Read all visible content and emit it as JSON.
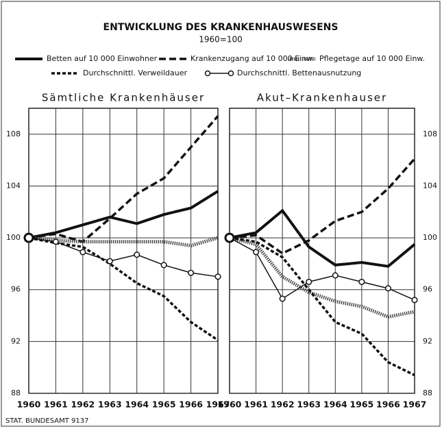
{
  "header": {
    "title": "ENTWICKLUNG DES KRANKENHAUSWESENS",
    "subtitle": "1960=100"
  },
  "source": "STAT. BUNDESAMT 9137",
  "chart_data": [
    {
      "type": "line",
      "title": "Sämtliche Krankenhäuser",
      "categories": [
        "1960",
        "1961",
        "1962",
        "1963",
        "1964",
        "1965",
        "1966",
        "1967"
      ],
      "ylim": [
        88,
        110
      ],
      "yticks": [
        88,
        92,
        96,
        100,
        104,
        108
      ],
      "grid": true,
      "yaxis": "left",
      "series": [
        {
          "name": "Betten auf 10 000 Einwohner",
          "color": "#111",
          "style": "solid-thick",
          "values": [
            100,
            100.4,
            101.0,
            101.6,
            101.1,
            101.8,
            102.3,
            103.6
          ]
        },
        {
          "name": "Krankenzugang auf 10 000 Einw.",
          "color": "#111",
          "style": "dashed",
          "values": [
            100,
            100.3,
            99.7,
            101.5,
            103.4,
            104.6,
            107.0,
            109.4
          ]
        },
        {
          "name": "Pflegetage auf 10 000 Einw.",
          "color": "#444",
          "style": "hatched",
          "values": [
            100,
            99.8,
            99.7,
            99.7,
            99.7,
            99.7,
            99.4,
            100.0
          ]
        },
        {
          "name": "Durchschnittl. Verweildauer",
          "color": "#111",
          "style": "short-dashed",
          "values": [
            100,
            99.6,
            99.3,
            98.0,
            96.5,
            95.5,
            93.5,
            92.1
          ]
        },
        {
          "name": "Durchschnittl. Bettenausnutzung",
          "color": "#111",
          "style": "circles",
          "values": [
            100,
            99.7,
            98.9,
            98.2,
            98.7,
            97.9,
            97.3,
            97.0
          ]
        }
      ]
    },
    {
      "type": "line",
      "title": "Akut–Krankenhauser",
      "categories": [
        "1960",
        "1961",
        "1962",
        "1963",
        "1964",
        "1965",
        "1966",
        "1967"
      ],
      "ylim": [
        88,
        110
      ],
      "yticks": [
        88,
        92,
        96,
        100,
        104,
        108
      ],
      "grid": true,
      "yaxis": "right",
      "series": [
        {
          "name": "Betten auf 10 000 Einwohner",
          "color": "#111",
          "style": "solid-thick",
          "values": [
            100,
            100.4,
            102.1,
            99.3,
            97.9,
            98.1,
            97.8,
            99.5
          ]
        },
        {
          "name": "Krankenzugang auf 10 000 Einw.",
          "color": "#111",
          "style": "dashed",
          "values": [
            100,
            100.2,
            98.8,
            99.8,
            101.3,
            102.0,
            103.8,
            106.1
          ]
        },
        {
          "name": "Pflegetage auf 10 000 Einw.",
          "color": "#444",
          "style": "hatched",
          "values": [
            100,
            99.5,
            97.0,
            95.8,
            95.1,
            94.7,
            93.9,
            94.3
          ]
        },
        {
          "name": "Durchschnittl. Verweildauer",
          "color": "#111",
          "style": "short-dashed",
          "values": [
            100,
            99.7,
            98.5,
            96.0,
            93.5,
            92.6,
            90.4,
            89.4
          ]
        },
        {
          "name": "Durchschnittl. Bettenausnutzung",
          "color": "#111",
          "style": "circles",
          "values": [
            100,
            98.9,
            95.3,
            96.6,
            97.1,
            96.6,
            96.1,
            95.2
          ]
        }
      ]
    }
  ]
}
